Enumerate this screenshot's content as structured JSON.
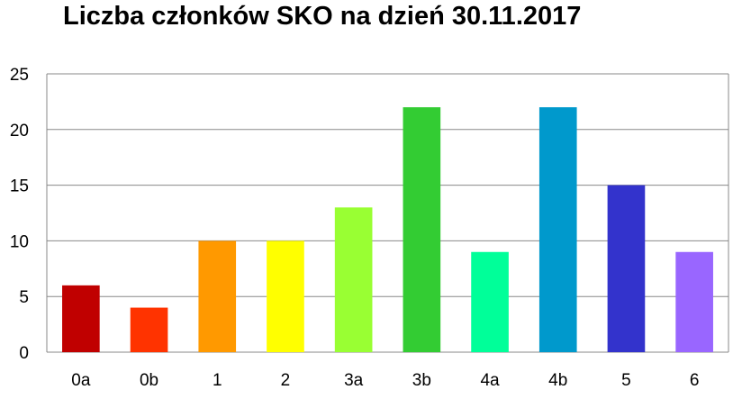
{
  "chart_data": {
    "type": "bar",
    "title": "Liczba członków SKO na dzień 30.11.2017",
    "xlabel": "",
    "ylabel": "",
    "categories": [
      "0a",
      "0b",
      "1",
      "2",
      "3a",
      "3b",
      "4a",
      "4b",
      "5",
      "6"
    ],
    "values": [
      6,
      4,
      10,
      10,
      13,
      22,
      9,
      22,
      15,
      9
    ],
    "colors": [
      "#C00000",
      "#FF3300",
      "#FF9900",
      "#FFFF00",
      "#99FF33",
      "#33CC33",
      "#00FF99",
      "#0099CC",
      "#3333CC",
      "#9966FF"
    ],
    "ylim": [
      0,
      25
    ],
    "yticks": [
      0,
      5,
      10,
      15,
      20,
      25
    ],
    "grid": true,
    "legend": "none"
  }
}
